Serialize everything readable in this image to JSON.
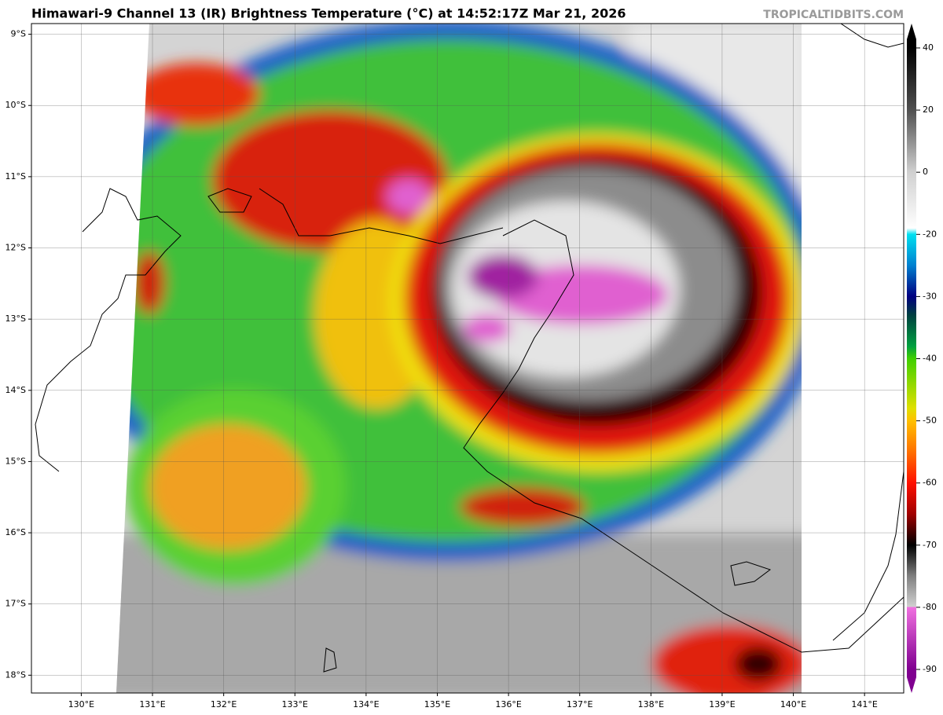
{
  "header": {
    "title": "Himawari-9 Channel 13 (IR) Brightness Temperature (°C) at 14:52:17Z Mar 21, 2026",
    "credit": "TROPICALTIDBITS.COM"
  },
  "map": {
    "lon_range": [
      129.3,
      141.55
    ],
    "lat_range": [
      -8.85,
      -18.25
    ],
    "grid": true,
    "lon_ticks": [
      {
        "value": 130,
        "label": "130°E"
      },
      {
        "value": 131,
        "label": "131°E"
      },
      {
        "value": 132,
        "label": "132°E"
      },
      {
        "value": 133,
        "label": "133°E"
      },
      {
        "value": 134,
        "label": "134°E"
      },
      {
        "value": 135,
        "label": "135°E"
      },
      {
        "value": 136,
        "label": "136°E"
      },
      {
        "value": 137,
        "label": "137°E"
      },
      {
        "value": 138,
        "label": "138°E"
      },
      {
        "value": 139,
        "label": "139°E"
      },
      {
        "value": 140,
        "label": "140°E"
      },
      {
        "value": 141,
        "label": "141°E"
      }
    ],
    "lat_ticks": [
      {
        "value": -9,
        "label": "9°S"
      },
      {
        "value": -10,
        "label": "10°S"
      },
      {
        "value": -11,
        "label": "11°S"
      },
      {
        "value": -12,
        "label": "12°S"
      },
      {
        "value": -13,
        "label": "13°S"
      },
      {
        "value": -14,
        "label": "14°S"
      },
      {
        "value": -15,
        "label": "15°S"
      },
      {
        "value": -16,
        "label": "16°S"
      },
      {
        "value": -17,
        "label": "17°S"
      },
      {
        "value": -18,
        "label": "18°S"
      }
    ]
  },
  "colorbar": {
    "ticks": [
      40,
      20,
      0,
      -20,
      -30,
      -40,
      -50,
      -60,
      -70,
      -80,
      -90
    ]
  }
}
